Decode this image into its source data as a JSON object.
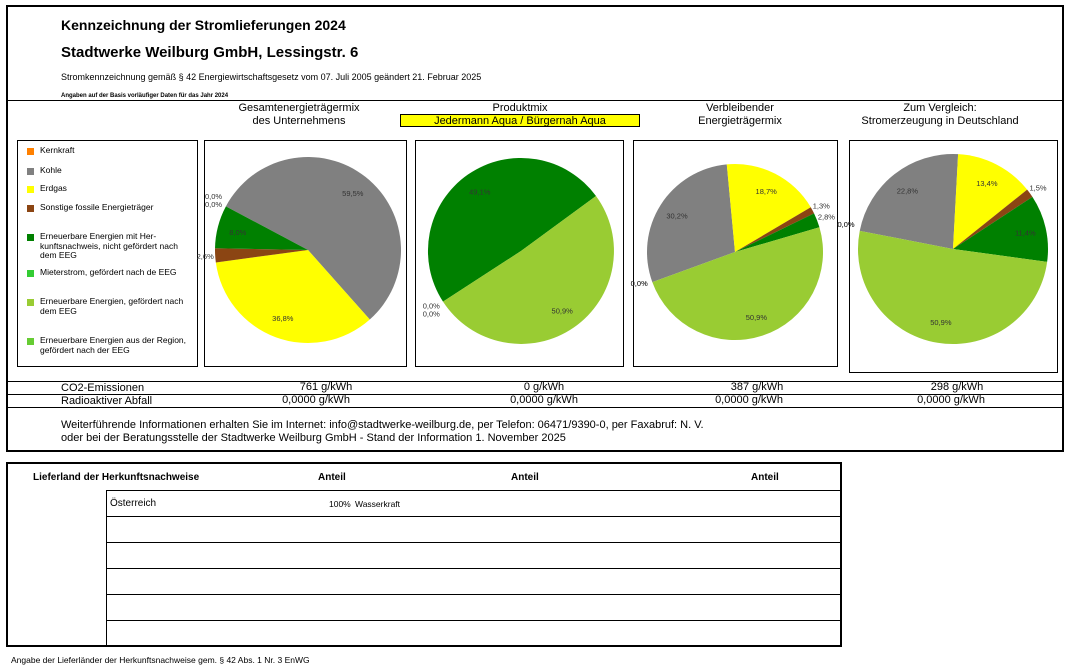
{
  "header": {
    "title": "Kennzeichnung der Stromlieferungen 2024",
    "company": "Stadtwerke Weilburg GmbH, Lessingstr. 6",
    "law": "Stromkennzeichnung gemäß § 42 Energiewirtschaftsgesetz vom 07. Juli 2005 geändert 21. Februar 2025",
    "note": "Angaben auf der Basis vorläufiger Daten für das Jahr 2024"
  },
  "columns": {
    "gesamt": [
      "Gesamtenergieträgermix",
      "des Unternehmens"
    ],
    "produkt": [
      "Produktmix"
    ],
    "produkt_name": "Jedermann Aqua / Bürgernah Aqua",
    "verbleibend": [
      "Verbleibender",
      "Energieträgermix"
    ],
    "vergleich": [
      "Zum Vergleich:",
      "Stromerzeugung in Deutschland"
    ]
  },
  "colors": {
    "kernkraft": "#ff8000",
    "kohle": "#808080",
    "erdgas": "#ffff00",
    "sonstige": "#8b4513",
    "erneuerbar_nicht_eeg": "#008000",
    "mieterstrom": "#33cc33",
    "erneuerbar_eeg": "#99cc33",
    "region_eeg": "#66cc33"
  },
  "legend": [
    {
      "label": "Kernkraft",
      "color": "#ff8000"
    },
    {
      "label": "Kohle",
      "color": "#808080"
    },
    {
      "label": "Erdgas",
      "color": "#ffff00"
    },
    {
      "label": "Sonstige fossile Energieträger",
      "color": "#8b4513"
    },
    {
      "label": "Erneuerbare Energien mit Her-kunftsnachweis, nicht gefördert nach dem EEG",
      "color": "#008000"
    },
    {
      "label": "Mieterstrom, gefördert nach de EEG",
      "color": "#33cc33"
    },
    {
      "label": "Erneuerbare Energien, gefördert nach dem EEG",
      "color": "#99cc33"
    },
    {
      "label": "Erneuerbare Energien aus der Region, gefördert nach der EEG",
      "color": "#66cc33"
    }
  ],
  "chart_data": [
    {
      "type": "pie",
      "title": "Gesamtenergieträgermix des Unternehmens",
      "slices": [
        {
          "label": "Kernkraft",
          "value": 0.0,
          "text": "0,0%"
        },
        {
          "label": "Kohle",
          "value": 59.5,
          "text": "59,5%"
        },
        {
          "label": "Erdgas",
          "value": 36.8,
          "text": "36,8%"
        },
        {
          "label": "Sonstige fossile Energieträger",
          "value": 2.6,
          "text": "2,6%"
        },
        {
          "label": "Erneuerbare Energien mit Herkunftsnachweis, nicht gefördert nach dem EEG",
          "value": 8.0,
          "text": "8,0%"
        },
        {
          "label": "Erneuerbare Energien, gefördert nach dem EEG",
          "value": 0.0,
          "text": "0,0%"
        }
      ]
    },
    {
      "type": "pie",
      "title": "Produktmix Jedermann Aqua / Bürgernah Aqua",
      "slices": [
        {
          "label": "Kernkraft",
          "value": 0.0,
          "text": "0,0%"
        },
        {
          "label": "Erneuerbare Energien mit Herkunftsnachweis, nicht gefördert nach dem EEG",
          "value": 49.1,
          "text": "49,1%"
        },
        {
          "label": "Erneuerbare Energien, gefördert nach dem EEG",
          "value": 50.9,
          "text": "50,9%"
        },
        {
          "label": "Kohle",
          "value": 0.0,
          "text": "0,0%"
        }
      ]
    },
    {
      "type": "pie",
      "title": "Verbleibender Energieträgermix",
      "slices": [
        {
          "label": "Kernkraft",
          "value": 0.0,
          "text": "0,0%"
        },
        {
          "label": "Kohle",
          "value": 30.2,
          "text": "30,2%"
        },
        {
          "label": "Erdgas",
          "value": 18.7,
          "text": "18,7%"
        },
        {
          "label": "Sonstige fossile Energieträger",
          "value": 1.3,
          "text": "1,3%"
        },
        {
          "label": "Erneuerbare Energien mit Herkunftsnachweis, nicht gefördert nach dem EEG",
          "value": 2.8,
          "text": "2,8%"
        },
        {
          "label": "Erneuerbare Energien, gefördert nach dem EEG",
          "value": 50.9,
          "text": "50,9%"
        },
        {
          "label": "Mieterstrom, gefördert nach dem EEG",
          "value": 0.0,
          "text": "0,0%"
        }
      ]
    },
    {
      "type": "pie",
      "title": "Zum Vergleich: Stromerzeugung in Deutschland",
      "slices": [
        {
          "label": "Kernkraft",
          "value": 0.0,
          "text": "0,0%"
        },
        {
          "label": "Kohle",
          "value": 22.8,
          "text": "22,8%"
        },
        {
          "label": "Erdgas",
          "value": 13.4,
          "text": "13,4%"
        },
        {
          "label": "Sonstige fossile Energieträger",
          "value": 1.5,
          "text": "1,5%"
        },
        {
          "label": "Erneuerbare Energien mit Herkunftsnachweis, nicht gefördert nach dem EEG",
          "value": 11.4,
          "text": "11,4%"
        },
        {
          "label": "Erneuerbare Energien, gefördert nach dem EEG",
          "value": 50.9,
          "text": "50,9%"
        },
        {
          "label": "Mieterstrom, gefördert nach dem EEG",
          "value": 0.0,
          "text": "0,0%"
        }
      ]
    }
  ],
  "rows": {
    "co2_label": "CO2-Emissionen",
    "co2": [
      "761 g/kWh",
      "0 g/kWh",
      "387 g/kWh",
      "298 g/kWh"
    ],
    "abfall_label": "Radioaktiver Abfall",
    "abfall": [
      "0,0000 g/kWh",
      "0,0000 g/kWh",
      "0,0000 g/kWh",
      "0,0000 g/kWh"
    ]
  },
  "info": {
    "line1": "Weiterführende Informationen erhalten Sie im Internet: info@stadtwerke-weilburg.de, per Telefon: 06471/9390-0, per Faxabruf: N. V.",
    "line2": "oder bei der Beratungsstelle der Stadtwerke Weilburg GmbH - Stand der Information 1. November 2025"
  },
  "lieferland": {
    "header_country": "Lieferland der Herkunftsnachweise",
    "header_anteil": "Anteil",
    "country": "Österreich",
    "percent": "100%",
    "source": "Wasserkraft"
  },
  "footer": "Angabe der Lieferländer der Herkunftsnachweise gem. § 42 Abs. 1 Nr. 3 EnWG"
}
